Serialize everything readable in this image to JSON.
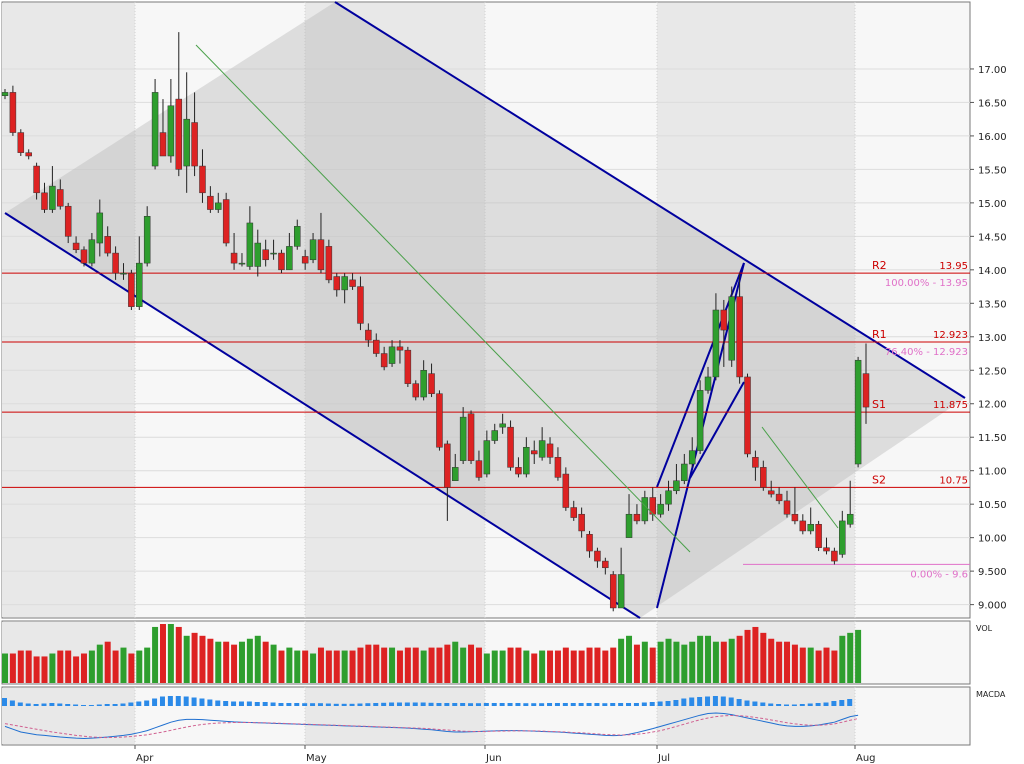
{
  "chart_data": {
    "type": "candlestick",
    "months": [
      "Apr",
      "May",
      "Jun",
      "Jul",
      "Aug"
    ],
    "y_ticks": [
      "9.000",
      "9.500",
      "10.00",
      "10.50",
      "11.00",
      "11.50",
      "12.00",
      "12.50",
      "13.00",
      "13.50",
      "14.00",
      "14.50",
      "15.00",
      "15.50",
      "16.00",
      "16.50",
      "17.00"
    ],
    "ylim": [
      8.8,
      18.0
    ],
    "levels": [
      {
        "name": "R2",
        "value": 13.95,
        "label": "13.95",
        "fib": "100.00% - 13.95"
      },
      {
        "name": "R1",
        "value": 12.923,
        "label": "12.923",
        "fib": "76.40% - 12.923"
      },
      {
        "name": "S1",
        "value": 11.875,
        "label": "11.875",
        "fib": ""
      },
      {
        "name": "S2",
        "value": 10.75,
        "label": "10.75",
        "fib": ""
      },
      {
        "name": "",
        "value": 9.6,
        "label": "",
        "fib": "0.00% - 9.6"
      }
    ],
    "candles": [
      [
        16.6,
        16.65,
        16.7,
        16.55
      ],
      [
        16.65,
        16.05,
        16.75,
        16.0
      ],
      [
        16.05,
        15.75,
        16.1,
        15.7
      ],
      [
        15.75,
        15.7,
        15.8,
        15.65
      ],
      [
        15.55,
        15.15,
        15.6,
        15.05
      ],
      [
        15.15,
        14.9,
        15.3,
        14.85
      ],
      [
        14.9,
        15.25,
        15.55,
        14.85
      ],
      [
        15.2,
        14.95,
        15.35,
        14.9
      ],
      [
        14.95,
        14.5,
        15.0,
        14.4
      ],
      [
        14.4,
        14.3,
        14.5,
        14.25
      ],
      [
        14.3,
        14.1,
        14.35,
        14.05
      ],
      [
        14.1,
        14.45,
        14.55,
        14.05
      ],
      [
        14.4,
        14.85,
        15.05,
        14.2
      ],
      [
        14.5,
        14.25,
        14.65,
        14.2
      ],
      [
        14.25,
        13.95,
        14.35,
        13.85
      ],
      [
        13.95,
        13.95,
        14.1,
        13.85
      ],
      [
        13.95,
        13.45,
        14.0,
        13.4
      ],
      [
        13.45,
        14.1,
        14.5,
        13.4
      ],
      [
        14.1,
        14.8,
        14.95,
        14.05
      ],
      [
        15.55,
        16.65,
        16.85,
        15.5
      ],
      [
        16.05,
        15.7,
        16.55,
        15.7
      ],
      [
        15.7,
        16.45,
        16.85,
        15.6
      ],
      [
        16.55,
        15.5,
        17.55,
        15.4
      ],
      [
        15.55,
        16.25,
        16.95,
        15.15
      ],
      [
        16.2,
        15.55,
        16.65,
        15.4
      ],
      [
        15.55,
        15.15,
        15.8,
        15.0
      ],
      [
        15.1,
        14.9,
        15.25,
        14.85
      ],
      [
        14.9,
        15.0,
        15.15,
        14.85
      ],
      [
        15.05,
        14.4,
        15.15,
        14.35
      ],
      [
        14.25,
        14.1,
        14.55,
        14.0
      ],
      [
        14.1,
        14.1,
        14.25,
        14.05
      ],
      [
        14.05,
        14.7,
        14.95,
        14.0
      ],
      [
        14.05,
        14.4,
        14.6,
        13.9
      ],
      [
        14.3,
        14.15,
        14.45,
        14.05
      ],
      [
        14.25,
        14.25,
        14.45,
        14.15
      ],
      [
        14.25,
        14.0,
        14.3,
        13.95
      ],
      [
        14.0,
        14.35,
        14.55,
        14.0
      ],
      [
        14.35,
        14.65,
        14.75,
        14.3
      ],
      [
        14.2,
        14.1,
        14.3,
        14.0
      ],
      [
        14.15,
        14.45,
        14.55,
        14.1
      ],
      [
        14.45,
        14.0,
        14.85,
        13.95
      ],
      [
        14.35,
        13.85,
        14.45,
        13.8
      ],
      [
        13.9,
        13.7,
        13.95,
        13.6
      ],
      [
        13.7,
        13.9,
        13.95,
        13.5
      ],
      [
        13.85,
        13.75,
        13.95,
        13.7
      ],
      [
        13.75,
        13.2,
        13.9,
        13.1
      ],
      [
        13.1,
        12.95,
        13.2,
        12.85
      ],
      [
        12.95,
        12.75,
        13.05,
        12.7
      ],
      [
        12.75,
        12.55,
        12.85,
        12.5
      ],
      [
        12.6,
        12.85,
        12.95,
        12.55
      ],
      [
        12.85,
        12.8,
        12.95,
        12.6
      ],
      [
        12.8,
        12.3,
        12.85,
        12.25
      ],
      [
        12.3,
        12.1,
        12.35,
        12.05
      ],
      [
        12.1,
        12.5,
        12.65,
        12.05
      ],
      [
        12.45,
        12.15,
        12.6,
        12.1
      ],
      [
        12.15,
        11.35,
        12.2,
        11.3
      ],
      [
        11.4,
        10.75,
        11.45,
        10.25
      ],
      [
        10.85,
        11.05,
        11.25,
        10.85
      ],
      [
        11.15,
        11.8,
        11.95,
        11.1
      ],
      [
        11.85,
        11.15,
        11.9,
        11.1
      ],
      [
        11.15,
        10.9,
        11.3,
        10.85
      ],
      [
        10.95,
        11.45,
        11.6,
        10.9
      ],
      [
        11.45,
        11.6,
        11.7,
        11.4
      ],
      [
        11.65,
        11.7,
        11.85,
        11.55
      ],
      [
        11.65,
        11.05,
        11.75,
        11.0
      ],
      [
        11.05,
        10.95,
        11.2,
        10.9
      ],
      [
        10.95,
        11.35,
        11.5,
        10.9
      ],
      [
        11.3,
        11.25,
        11.45,
        11.1
      ],
      [
        11.2,
        11.45,
        11.65,
        11.15
      ],
      [
        11.4,
        11.2,
        11.5,
        11.1
      ],
      [
        11.2,
        10.9,
        11.35,
        10.85
      ],
      [
        10.95,
        10.45,
        11.05,
        10.4
      ],
      [
        10.45,
        10.3,
        10.55,
        10.25
      ],
      [
        10.35,
        10.1,
        10.45,
        10.0
      ],
      [
        10.05,
        9.8,
        10.1,
        9.7
      ],
      [
        9.8,
        9.65,
        9.85,
        9.55
      ],
      [
        9.65,
        9.55,
        9.7,
        9.45
      ],
      [
        9.45,
        8.95,
        9.5,
        8.9
      ],
      [
        8.95,
        9.45,
        9.85,
        8.95
      ],
      [
        10.0,
        10.35,
        10.65,
        10.0
      ],
      [
        10.35,
        10.25,
        10.5,
        10.2
      ],
      [
        10.25,
        10.6,
        10.7,
        10.2
      ],
      [
        10.6,
        10.35,
        10.75,
        10.25
      ],
      [
        10.35,
        10.5,
        10.65,
        10.3
      ],
      [
        10.5,
        10.7,
        10.85,
        10.4
      ],
      [
        10.7,
        10.85,
        11.1,
        10.65
      ],
      [
        10.85,
        11.1,
        11.25,
        10.8
      ],
      [
        11.1,
        11.3,
        11.5,
        11.05
      ],
      [
        11.3,
        12.2,
        12.35,
        11.25
      ],
      [
        12.2,
        12.4,
        12.55,
        12.15
      ],
      [
        12.4,
        13.4,
        13.65,
        12.35
      ],
      [
        13.4,
        13.1,
        13.55,
        12.55
      ],
      [
        12.65,
        13.6,
        13.75,
        12.55
      ],
      [
        13.6,
        12.4,
        13.95,
        12.3
      ],
      [
        12.4,
        11.25,
        12.45,
        11.2
      ],
      [
        11.2,
        11.05,
        11.3,
        10.85
      ],
      [
        11.05,
        10.75,
        11.15,
        10.7
      ],
      [
        10.7,
        10.65,
        10.85,
        10.6
      ],
      [
        10.65,
        10.55,
        10.75,
        10.5
      ],
      [
        10.55,
        10.35,
        10.7,
        10.3
      ],
      [
        10.35,
        10.25,
        10.75,
        10.2
      ],
      [
        10.25,
        10.1,
        10.35,
        10.05
      ],
      [
        10.1,
        10.2,
        10.45,
        10.05
      ],
      [
        10.2,
        9.85,
        10.25,
        9.8
      ],
      [
        9.85,
        9.8,
        10.0,
        9.75
      ],
      [
        9.8,
        9.65,
        9.85,
        9.6
      ],
      [
        9.75,
        10.25,
        10.4,
        9.7
      ],
      [
        10.2,
        10.35,
        10.85,
        10.15
      ],
      [
        11.1,
        12.65,
        12.7,
        11.05
      ],
      [
        12.45,
        11.95,
        12.9,
        11.7
      ]
    ],
    "volume": [
      0.5,
      0.5,
      0.55,
      0.55,
      0.45,
      0.45,
      0.5,
      0.55,
      0.55,
      0.45,
      0.5,
      0.55,
      0.65,
      0.7,
      0.55,
      0.6,
      0.5,
      0.55,
      0.6,
      0.95,
      1.0,
      1.0,
      0.95,
      0.8,
      0.85,
      0.8,
      0.75,
      0.7,
      0.7,
      0.65,
      0.7,
      0.75,
      0.8,
      0.7,
      0.65,
      0.55,
      0.6,
      0.55,
      0.55,
      0.5,
      0.6,
      0.55,
      0.55,
      0.55,
      0.55,
      0.6,
      0.65,
      0.65,
      0.6,
      0.6,
      0.55,
      0.6,
      0.6,
      0.55,
      0.6,
      0.6,
      0.65,
      0.7,
      0.6,
      0.65,
      0.6,
      0.5,
      0.55,
      0.55,
      0.6,
      0.6,
      0.55,
      0.5,
      0.55,
      0.55,
      0.55,
      0.6,
      0.55,
      0.55,
      0.6,
      0.6,
      0.55,
      0.6,
      0.75,
      0.8,
      0.65,
      0.7,
      0.6,
      0.7,
      0.75,
      0.7,
      0.65,
      0.7,
      0.8,
      0.8,
      0.7,
      0.7,
      0.75,
      0.8,
      0.9,
      0.95,
      0.85,
      0.75,
      0.7,
      0.7,
      0.65,
      0.6,
      0.6,
      0.55,
      0.6,
      0.55,
      0.8,
      0.85,
      0.9
    ],
    "macd": {
      "histogram": [
        0.8,
        0.55,
        0.35,
        0.25,
        0.2,
        0.25,
        0.3,
        0.25,
        0.2,
        0.15,
        0.1,
        0.1,
        0.15,
        0.2,
        0.2,
        0.25,
        0.35,
        0.45,
        0.55,
        0.75,
        0.95,
        1.0,
        1.0,
        0.95,
        0.85,
        0.75,
        0.65,
        0.55,
        0.5,
        0.45,
        0.45,
        0.45,
        0.4,
        0.4,
        0.35,
        0.3,
        0.3,
        0.3,
        0.28,
        0.28,
        0.28,
        0.25,
        0.22,
        0.22,
        0.22,
        0.25,
        0.28,
        0.3,
        0.32,
        0.35,
        0.35,
        0.35,
        0.35,
        0.35,
        0.32,
        0.3,
        0.3,
        0.3,
        0.3,
        0.28,
        0.28,
        0.3,
        0.3,
        0.3,
        0.3,
        0.3,
        0.28,
        0.28,
        0.28,
        0.3,
        0.3,
        0.3,
        0.3,
        0.3,
        0.3,
        0.3,
        0.28,
        0.3,
        0.3,
        0.3,
        0.3,
        0.35,
        0.4,
        0.45,
        0.5,
        0.6,
        0.75,
        0.85,
        0.9,
        0.95,
        1.0,
        0.95,
        0.85,
        0.7,
        0.55,
        0.45,
        0.35,
        0.25,
        0.2,
        0.15,
        0.15,
        0.2,
        0.25,
        0.3,
        0.35,
        0.5,
        0.6,
        0.7
      ],
      "macd_line": [
        -0.3,
        -0.4,
        -0.5,
        -0.55,
        -0.6,
        -0.62,
        -0.65,
        -0.68,
        -0.7,
        -0.72,
        -0.73,
        -0.72,
        -0.7,
        -0.68,
        -0.65,
        -0.62,
        -0.58,
        -0.52,
        -0.45,
        -0.35,
        -0.25,
        -0.15,
        -0.08,
        -0.05,
        -0.05,
        -0.06,
        -0.08,
        -0.1,
        -0.12,
        -0.14,
        -0.15,
        -0.16,
        -0.17,
        -0.18,
        -0.19,
        -0.2,
        -0.21,
        -0.22,
        -0.23,
        -0.24,
        -0.25,
        -0.26,
        -0.27,
        -0.28,
        -0.29,
        -0.3,
        -0.31,
        -0.32,
        -0.33,
        -0.34,
        -0.35,
        -0.36,
        -0.38,
        -0.4,
        -0.42,
        -0.45,
        -0.48,
        -0.5,
        -0.5,
        -0.49,
        -0.48,
        -0.47,
        -0.46,
        -0.45,
        -0.45,
        -0.45,
        -0.46,
        -0.47,
        -0.48,
        -0.49,
        -0.5,
        -0.52,
        -0.54,
        -0.56,
        -0.58,
        -0.6,
        -0.62,
        -0.63,
        -0.62,
        -0.58,
        -0.52,
        -0.45,
        -0.38,
        -0.3,
        -0.22,
        -0.14,
        -0.06,
        0.02,
        0.1,
        0.16,
        0.18,
        0.16,
        0.12,
        0.06,
        0.0,
        -0.06,
        -0.12,
        -0.18,
        -0.24,
        -0.28,
        -0.3,
        -0.3,
        -0.28,
        -0.25,
        -0.2,
        -0.15,
        -0.05,
        0.05,
        0.1
      ],
      "signal_line": [
        -0.2,
        -0.25,
        -0.3,
        -0.35,
        -0.4,
        -0.45,
        -0.5,
        -0.54,
        -0.58,
        -0.62,
        -0.65,
        -0.68,
        -0.69,
        -0.7,
        -0.69,
        -0.68,
        -0.66,
        -0.63,
        -0.6,
        -0.55,
        -0.5,
        -0.44,
        -0.38,
        -0.32,
        -0.27,
        -0.23,
        -0.2,
        -0.18,
        -0.17,
        -0.16,
        -0.16,
        -0.16,
        -0.17,
        -0.17,
        -0.18,
        -0.19,
        -0.2,
        -0.21,
        -0.22,
        -0.23,
        -0.24,
        -0.25,
        -0.26,
        -0.27,
        -0.28,
        -0.29,
        -0.3,
        -0.31,
        -0.32,
        -0.33,
        -0.34,
        -0.35,
        -0.36,
        -0.37,
        -0.39,
        -0.41,
        -0.43,
        -0.45,
        -0.47,
        -0.48,
        -0.48,
        -0.48,
        -0.47,
        -0.47,
        -0.46,
        -0.46,
        -0.46,
        -0.46,
        -0.47,
        -0.48,
        -0.49,
        -0.5,
        -0.52,
        -0.53,
        -0.55,
        -0.57,
        -0.59,
        -0.6,
        -0.61,
        -0.6,
        -0.58,
        -0.55,
        -0.5,
        -0.45,
        -0.38,
        -0.3,
        -0.22,
        -0.14,
        -0.06,
        0.0,
        0.05,
        0.08,
        0.09,
        0.08,
        0.06,
        0.02,
        -0.02,
        -0.07,
        -0.12,
        -0.17,
        -0.21,
        -0.24,
        -0.26,
        -0.26,
        -0.24,
        -0.21,
        -0.15,
        -0.08,
        -0.02
      ]
    },
    "panel_labels": {
      "volume": "VOL",
      "macd": "MACDA"
    },
    "colors": {
      "up": "#2e9e2e",
      "down": "#dd2222",
      "channel": "#00009e",
      "level": "#cc0000",
      "fib": "#e070c8",
      "trend": "#4aa04a",
      "histogram": "#2b8ae8"
    }
  }
}
